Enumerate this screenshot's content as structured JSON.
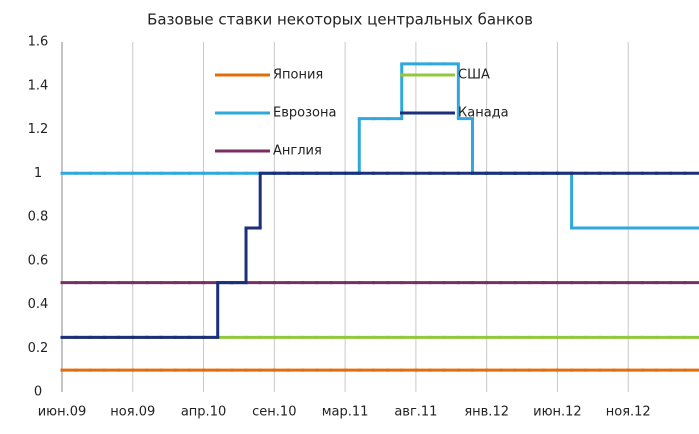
{
  "chart_data": {
    "type": "step-line",
    "title": "Базовые ставки некоторых центральных банков",
    "categories": [
      "июн.09",
      null,
      null,
      null,
      null,
      "ноя.09",
      null,
      null,
      null,
      null,
      "апр.10",
      null,
      null,
      null,
      null,
      "сен.10",
      null,
      null,
      null,
      null,
      "мар.11",
      null,
      null,
      null,
      null,
      "авг.11",
      null,
      null,
      null,
      null,
      "янв.12",
      null,
      null,
      null,
      null,
      "июн.12",
      null,
      null,
      null,
      null,
      "ноя.12",
      null,
      null,
      null,
      null
    ],
    "series": [
      {
        "name": "Япония",
        "color": "#e46c0a",
        "values": [
          0.1,
          0.1,
          0.1,
          0.1,
          0.1,
          0.1,
          0.1,
          0.1,
          0.1,
          0.1,
          0.1,
          0.1,
          0.1,
          0.1,
          0.1,
          0.1,
          0.1,
          0.1,
          0.1,
          0.1,
          0.1,
          0.1,
          0.1,
          0.1,
          0.1,
          0.1,
          0.1,
          0.1,
          0.1,
          0.1,
          0.1,
          0.1,
          0.1,
          0.1,
          0.1,
          0.1,
          0.1,
          0.1,
          0.1,
          0.1,
          0.1,
          0.1,
          0.1,
          0.1,
          0.1
        ]
      },
      {
        "name": "США",
        "color": "#92c83e",
        "values": [
          0.25,
          0.25,
          0.25,
          0.25,
          0.25,
          0.25,
          0.25,
          0.25,
          0.25,
          0.25,
          0.25,
          0.25,
          0.25,
          0.25,
          0.25,
          0.25,
          0.25,
          0.25,
          0.25,
          0.25,
          0.25,
          0.25,
          0.25,
          0.25,
          0.25,
          0.25,
          0.25,
          0.25,
          0.25,
          0.25,
          0.25,
          0.25,
          0.25,
          0.25,
          0.25,
          0.25,
          0.25,
          0.25,
          0.25,
          0.25,
          0.25,
          0.25,
          0.25,
          0.25,
          0.25
        ]
      },
      {
        "name": "Еврозона",
        "color": "#2fa8dc",
        "values": [
          1,
          1,
          1,
          1,
          1,
          1,
          1,
          1,
          1,
          1,
          1,
          1,
          1,
          1,
          1,
          1,
          1,
          1,
          1,
          1,
          1,
          1.25,
          1.25,
          1.25,
          1.5,
          1.5,
          1.5,
          1.5,
          1.25,
          1,
          1,
          1,
          1,
          1,
          1,
          1,
          0.75,
          0.75,
          0.75,
          0.75,
          0.75,
          0.75,
          0.75,
          0.75,
          0.75
        ]
      },
      {
        "name": "Канада",
        "color": "#1b2f7d",
        "values": [
          0.25,
          0.25,
          0.25,
          0.25,
          0.25,
          0.25,
          0.25,
          0.25,
          0.25,
          0.25,
          0.25,
          0.5,
          0.5,
          0.75,
          1,
          1,
          1,
          1,
          1,
          1,
          1,
          1,
          1,
          1,
          1,
          1,
          1,
          1,
          1,
          1,
          1,
          1,
          1,
          1,
          1,
          1,
          1,
          1,
          1,
          1,
          1,
          1,
          1,
          1,
          1
        ]
      },
      {
        "name": "Англия",
        "color": "#7a2e63",
        "values": [
          0.5,
          0.5,
          0.5,
          0.5,
          0.5,
          0.5,
          0.5,
          0.5,
          0.5,
          0.5,
          0.5,
          0.5,
          0.5,
          0.5,
          0.5,
          0.5,
          0.5,
          0.5,
          0.5,
          0.5,
          0.5,
          0.5,
          0.5,
          0.5,
          0.5,
          0.5,
          0.5,
          0.5,
          0.5,
          0.5,
          0.5,
          0.5,
          0.5,
          0.5,
          0.5,
          0.5,
          0.5,
          0.5,
          0.5,
          0.5,
          0.5,
          0.5,
          0.5,
          0.5,
          0.5
        ]
      }
    ],
    "ylim": [
      0,
      1.6
    ],
    "yticks": [
      0,
      0.2,
      0.4,
      0.6,
      0.8,
      1,
      1.2,
      1.4,
      1.6
    ],
    "grid": "x"
  }
}
